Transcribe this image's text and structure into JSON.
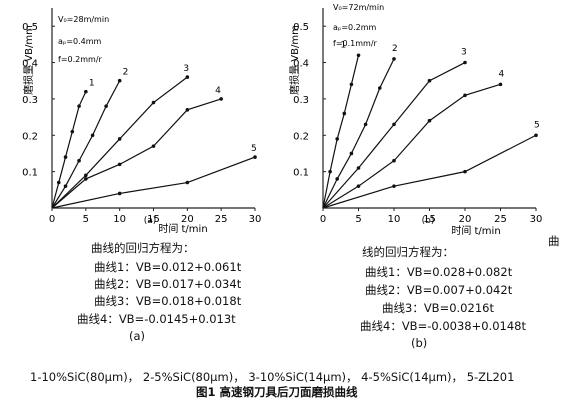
{
  "chart_data": [
    {
      "type": "line",
      "sublabel": "(a)",
      "params": [
        "V₀=28m/min",
        "aₚ=0.4mm",
        "f=0.2mm/r"
      ],
      "ylabel": "磨损量 VB/mm",
      "xlabel": "时间 t/min",
      "xticks": [
        "0",
        "5",
        "10",
        "15",
        "20",
        "25",
        "30"
      ],
      "yticks": [
        "0.1",
        "0.2",
        "0.3",
        "0.4",
        "0.5"
      ],
      "xlim": [
        0,
        30
      ],
      "ylim": [
        0,
        0.55
      ],
      "series": [
        {
          "name": "1",
          "x": [
            0,
            1,
            2,
            3,
            4,
            5
          ],
          "y": [
            0,
            0.07,
            0.14,
            0.21,
            0.28,
            0.32
          ]
        },
        {
          "name": "2",
          "x": [
            0,
            2,
            4,
            6,
            8,
            10
          ],
          "y": [
            0,
            0.06,
            0.13,
            0.2,
            0.28,
            0.35
          ]
        },
        {
          "name": "3",
          "x": [
            0,
            5,
            10,
            15,
            20
          ],
          "y": [
            0,
            0.09,
            0.19,
            0.29,
            0.36
          ]
        },
        {
          "name": "4",
          "x": [
            0,
            5,
            10,
            15,
            20,
            25
          ],
          "y": [
            0,
            0.08,
            0.12,
            0.17,
            0.27,
            0.3
          ]
        },
        {
          "name": "5",
          "x": [
            0,
            10,
            20,
            30
          ],
          "y": [
            0,
            0.04,
            0.07,
            0.14
          ]
        }
      ]
    },
    {
      "type": "line",
      "sublabel": "(b)",
      "params": [
        "V₀=72m/min",
        "aₚ=0.2mm",
        "f=0.1mm/r"
      ],
      "ylabel": "磨损量 VB/mm",
      "xlabel": "时间 t/min",
      "xticks": [
        "0",
        "5",
        "10",
        "15",
        "20",
        "25",
        "30"
      ],
      "yticks": [
        "0.1",
        "0.2",
        "0.3",
        "0.4",
        "0.5"
      ],
      "xlim": [
        0,
        30
      ],
      "ylim": [
        0,
        0.55
      ],
      "series": [
        {
          "name": "1",
          "x": [
            0,
            1,
            2,
            3,
            4,
            5
          ],
          "y": [
            0,
            0.1,
            0.19,
            0.26,
            0.34,
            0.42
          ]
        },
        {
          "name": "2",
          "x": [
            0,
            2,
            4,
            6,
            8,
            10
          ],
          "y": [
            0,
            0.08,
            0.15,
            0.23,
            0.33,
            0.41
          ]
        },
        {
          "name": "3",
          "x": [
            0,
            5,
            10,
            15,
            20
          ],
          "y": [
            0,
            0.11,
            0.23,
            0.35,
            0.4
          ]
        },
        {
          "name": "4",
          "x": [
            0,
            5,
            10,
            15,
            20,
            25
          ],
          "y": [
            0,
            0.06,
            0.13,
            0.24,
            0.31,
            0.34
          ]
        },
        {
          "name": "5",
          "x": [
            0,
            10,
            20,
            30
          ],
          "y": [
            0,
            0.06,
            0.1,
            0.2
          ]
        }
      ]
    }
  ],
  "equations": {
    "a": {
      "title": "曲线的回归方程为：",
      "lines": [
        "曲线1：VB=0.012+0.061t",
        "曲线2：VB=0.017+0.034t",
        "曲线3：VB=0.018+0.018t",
        "曲线4：VB=-0.0145+0.013t"
      ],
      "label": "(a)"
    },
    "b": {
      "title": "线的回归方程为：",
      "lines": [
        "曲线1：VB=0.028+0.082t",
        "曲线2：VB=0.007+0.042t",
        "曲线3：VB=0.0216t",
        "曲线4：VB=-0.0038+0.0148t"
      ],
      "label": "(b)",
      "stray": "曲"
    }
  },
  "legend_line": "1-10%SiC(80μm)，   2-5%SiC(80μm)，   3-10%SiC(14μm)，   4-5%SiC(14μm)，   5-ZL201",
  "caption": "图1 高速钢刀具后刀面磨损曲线"
}
